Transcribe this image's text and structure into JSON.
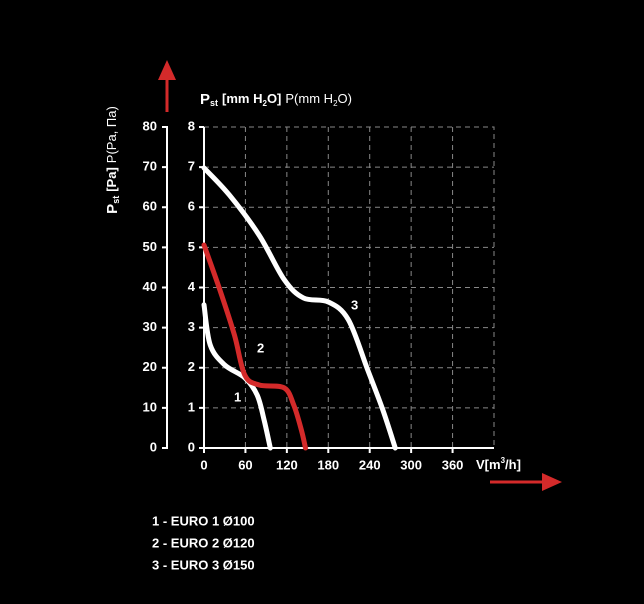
{
  "chart_data": {
    "type": "line",
    "y_label": {
      "symbol": "P",
      "subscript": "st",
      "unit": "[Pa]",
      "alt": "P(Pa, Па)"
    },
    "y2_label": {
      "symbol": "P",
      "subscript": "st",
      "unit_a": "[mm H",
      "unit_sub": "2",
      "unit_b": "O]",
      "alt_a": "P(mm H",
      "alt_sub": "2",
      "alt_b": "O)"
    },
    "x_label": {
      "a": "V[m",
      "sup": "3",
      "b": "/h]"
    },
    "xlim": [
      0,
      420
    ],
    "xticks": [
      0,
      60,
      120,
      180,
      240,
      300,
      360
    ],
    "ylim": [
      0,
      80
    ],
    "yticks": [
      0,
      10,
      20,
      30,
      40,
      50,
      60,
      70,
      80
    ],
    "y2lim": [
      0,
      8
    ],
    "y2ticks": [
      0,
      1,
      2,
      3,
      4,
      5,
      6,
      7,
      8
    ],
    "grid": true,
    "series": [
      {
        "name": "1 - EURO 1 Ø100",
        "label": "1",
        "color": "#ffffff",
        "x": [
          0,
          9,
          30,
          59,
          77,
          87,
          96
        ],
        "values": [
          35.7,
          25.7,
          20.7,
          17.5,
          13.2,
          7,
          0
        ]
      },
      {
        "name": "2 - EURO 2 Ø120",
        "label": "2",
        "color": "#d42a2a",
        "x": [
          0,
          23,
          44,
          59,
          80,
          116,
          130,
          141,
          147
        ],
        "values": [
          50.6,
          39.4,
          28.2,
          18.2,
          15.7,
          15,
          10.7,
          4.5,
          0
        ]
      },
      {
        "name": "3 - EURO 3 Ø150",
        "label": "3",
        "color": "#ffffff",
        "x": [
          0,
          37,
          80,
          116,
          144,
          180,
          209,
          237,
          259,
          277
        ],
        "values": [
          69.8,
          63,
          53,
          42,
          37.4,
          36.4,
          32,
          19.5,
          9.5,
          0
        ]
      }
    ]
  }
}
